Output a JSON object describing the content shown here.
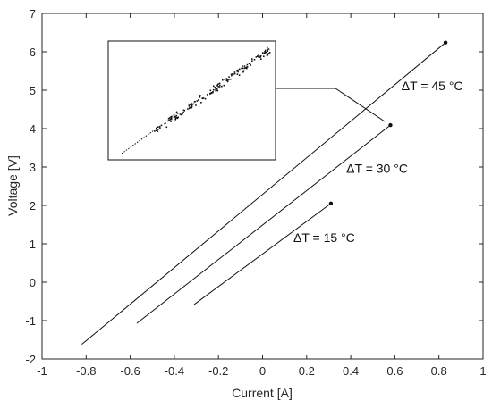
{
  "chart_data": {
    "type": "line",
    "xlabel": "Current [A]",
    "ylabel": "Voltage [V]",
    "xlim": [
      -1,
      1
    ],
    "ylim": [
      -2,
      7
    ],
    "xticks": [
      "-1",
      "-0.8",
      "-0.6",
      "-0.4",
      "-0.2",
      "0",
      "0.2",
      "0.4",
      "0.6",
      "0.8",
      "1"
    ],
    "yticks": [
      "-2",
      "-1",
      "0",
      "1",
      "2",
      "3",
      "4",
      "5",
      "6",
      "7"
    ],
    "grid": false,
    "series": [
      {
        "x": [
          -0.82,
          0.83
        ],
        "y": [
          -1.62,
          6.24
        ]
      },
      {
        "x": [
          -0.57,
          0.58
        ],
        "y": [
          -1.07,
          4.09
        ]
      },
      {
        "x": [
          -0.31,
          0.31
        ],
        "y": [
          -0.58,
          2.05
        ]
      }
    ],
    "annotations": [
      {
        "text": "ΔT = 45 °C",
        "x": 0.63,
        "y": 5.0
      },
      {
        "text": "ΔT = 30 °C",
        "x": 0.38,
        "y": 2.85
      },
      {
        "text": "ΔT = 15 °C",
        "x": 0.14,
        "y": 1.05
      }
    ],
    "inset": {
      "type": "scatter",
      "description_points": "noisy cluster along the line segment near its upper end",
      "x": [
        -0.62,
        0.04
      ],
      "y": [
        3.35,
        6.05
      ]
    },
    "colors": {
      "line": "#111111",
      "axis": "#262626"
    }
  }
}
